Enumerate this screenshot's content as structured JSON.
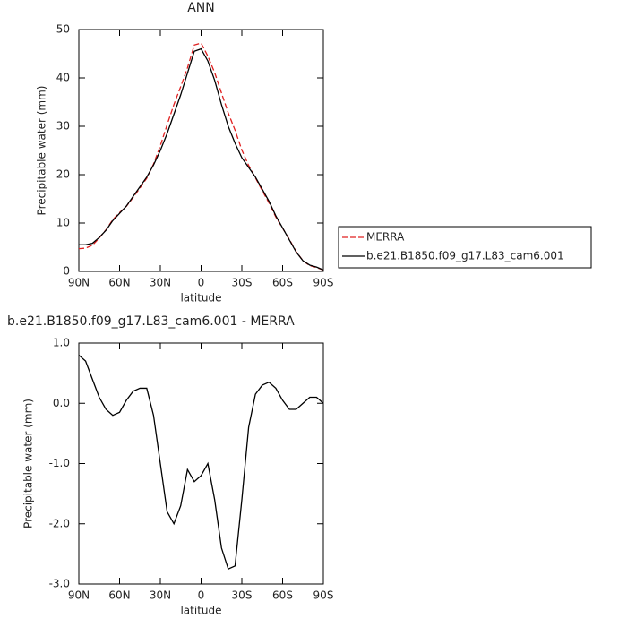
{
  "chart_data": [
    {
      "type": "line",
      "title": "ANN",
      "xlabel": "latitude",
      "ylabel": "Precipitable water (mm)",
      "x": [
        90,
        85,
        80,
        75,
        70,
        65,
        60,
        55,
        50,
        45,
        40,
        35,
        30,
        25,
        20,
        15,
        10,
        5,
        0,
        -5,
        -10,
        -15,
        -20,
        -25,
        -30,
        -35,
        -40,
        -45,
        -50,
        -55,
        -60,
        -65,
        -70,
        -75,
        -80,
        -85,
        -90
      ],
      "xlim": [
        90,
        -90
      ],
      "xticks": [
        {
          "value": 90,
          "label": "90N"
        },
        {
          "value": 60,
          "label": "60N"
        },
        {
          "value": 30,
          "label": "30N"
        },
        0,
        {
          "value": -30,
          "label": "30S"
        },
        {
          "value": -60,
          "label": "60S"
        },
        {
          "value": -90,
          "label": "90S"
        }
      ],
      "ylim": [
        0,
        50
      ],
      "yticks": [
        0,
        10,
        20,
        30,
        40,
        50
      ],
      "legend": "right",
      "series": [
        {
          "name": "MERRA",
          "color": "#e02020",
          "style": "dashed",
          "values": [
            4.7,
            4.8,
            5.4,
            6.9,
            8.6,
            10.7,
            12.15,
            13.45,
            15.3,
            17.25,
            19.25,
            22.2,
            26,
            30.3,
            34.5,
            38.2,
            42.1,
            46.8,
            47.2,
            44.5,
            41.1,
            36.9,
            32.75,
            29.2,
            25.1,
            21.9,
            19.35,
            16.7,
            14.15,
            11.25,
            8.95,
            6.6,
            4.1,
            2.2,
            1.2,
            0.8,
            0.3
          ]
        },
        {
          "name": "b.e21.B1850.f09_g17.L83_cam6.001",
          "color": "#000000",
          "style": "solid",
          "values": [
            5.5,
            5.5,
            5.8,
            7,
            8.5,
            10.5,
            12,
            13.5,
            15.5,
            17.5,
            19.5,
            22,
            25,
            28.5,
            32.5,
            36.5,
            41,
            45.5,
            46,
            43.5,
            39.5,
            34.5,
            30,
            26.5,
            23.5,
            21.5,
            19.5,
            17,
            14.5,
            11.5,
            9,
            6.5,
            4,
            2.2,
            1.3,
            0.9,
            0.3
          ]
        }
      ]
    },
    {
      "type": "line",
      "title": "b.e21.B1850.f09_g17.L83_cam6.001 - MERRA",
      "xlabel": "latitude",
      "ylabel": "Precipitable water (mm)",
      "x": [
        90,
        85,
        80,
        75,
        70,
        65,
        60,
        55,
        50,
        45,
        40,
        35,
        30,
        25,
        20,
        15,
        10,
        5,
        0,
        -5,
        -10,
        -15,
        -20,
        -25,
        -30,
        -35,
        -40,
        -45,
        -50,
        -55,
        -60,
        -65,
        -70,
        -75,
        -80,
        -85,
        -90
      ],
      "xlim": [
        90,
        -90
      ],
      "xticks": [
        {
          "value": 90,
          "label": "90N"
        },
        {
          "value": 60,
          "label": "60N"
        },
        {
          "value": 30,
          "label": "30N"
        },
        0,
        {
          "value": -30,
          "label": "30S"
        },
        {
          "value": -60,
          "label": "60S"
        },
        {
          "value": -90,
          "label": "90S"
        }
      ],
      "ylim": [
        -3,
        1
      ],
      "yticks": [
        {
          "value": 1,
          "label": "1.0"
        },
        {
          "value": 0,
          "label": "0.0"
        },
        {
          "value": -1,
          "label": "-1.0"
        },
        {
          "value": -2,
          "label": "-2.0"
        },
        {
          "value": -3,
          "label": "-3.0"
        }
      ],
      "color": "#000000",
      "values": [
        0.8,
        0.7,
        0.4,
        0.1,
        -0.1,
        -0.2,
        -0.15,
        0.05,
        0.2,
        0.25,
        0.25,
        -0.2,
        -1.0,
        -1.8,
        -2.0,
        -1.7,
        -1.1,
        -1.3,
        -1.2,
        -1.0,
        -1.6,
        -2.4,
        -2.75,
        -2.7,
        -1.6,
        -0.4,
        0.15,
        0.3,
        0.35,
        0.25,
        0.05,
        -0.1,
        -0.1,
        0.0,
        0.1,
        0.1,
        0.0
      ]
    }
  ]
}
